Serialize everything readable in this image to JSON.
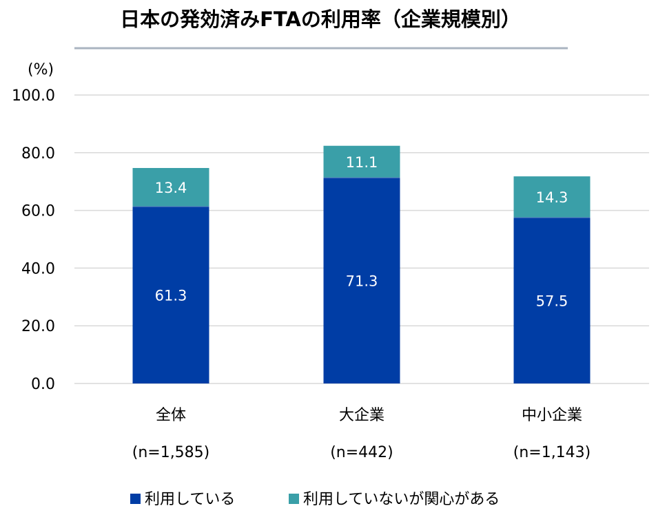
{
  "chart_data": {
    "type": "bar",
    "stacked": true,
    "title": "日本の発効済みFTAの利用率（企業規模別）",
    "ylabel": "(%)",
    "ylim": [
      0,
      100
    ],
    "yticks": [
      "0.0",
      "20.0",
      "40.0",
      "60.0",
      "80.0",
      "100.0"
    ],
    "grid": true,
    "legend_position": "bottom",
    "categories": [
      "全体",
      "大企業",
      "中小企業"
    ],
    "category_samples": [
      "(n=1,585)",
      "(n=442)",
      "(n=1,143)"
    ],
    "series": [
      {
        "name": "利用している",
        "color": "#003da5",
        "values": [
          61.3,
          71.3,
          57.5
        ],
        "labels": [
          "61.3",
          "71.3",
          "57.5"
        ]
      },
      {
        "name": "利用していないが関心がある",
        "color": "#3a9fa8",
        "values": [
          13.4,
          11.1,
          14.3
        ],
        "labels": [
          "13.4",
          "11.1",
          "14.3"
        ]
      }
    ]
  }
}
